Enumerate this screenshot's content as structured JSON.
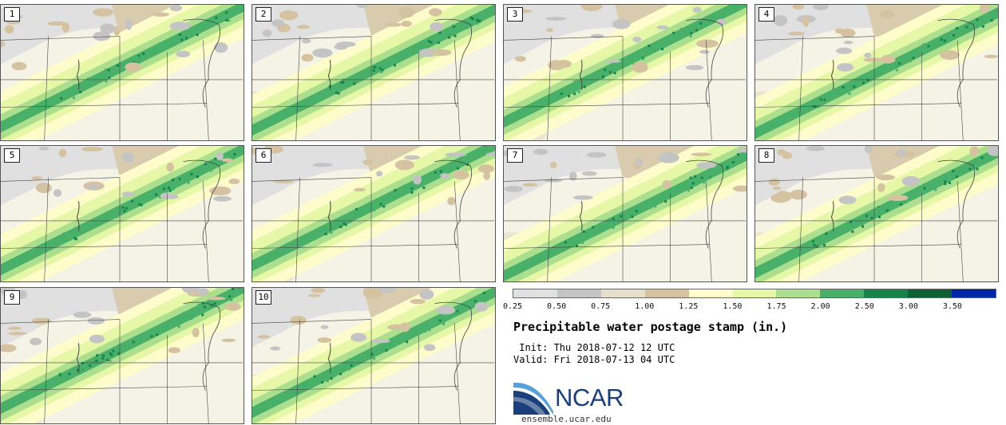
{
  "panels": [
    {
      "label": "1"
    },
    {
      "label": "2"
    },
    {
      "label": "3"
    },
    {
      "label": "4"
    },
    {
      "label": "5"
    },
    {
      "label": "6"
    },
    {
      "label": "7"
    },
    {
      "label": "8"
    },
    {
      "label": "9"
    },
    {
      "label": "10"
    }
  ],
  "colorbar": {
    "bin_colors": [
      "#e0e0e0",
      "#c4c4c4",
      "#e6dfcc",
      "#d4c2a0",
      "#fffccc",
      "#e6f7a8",
      "#acdf8d",
      "#49b06a",
      "#15834a",
      "#0d5f35",
      "#0025a8"
    ],
    "tick_labels": [
      "0.25",
      "0.50",
      "0.75",
      "1.00",
      "1.25",
      "1.50",
      "1.75",
      "2.00",
      "2.50",
      "3.00",
      "3.50"
    ]
  },
  "title": "Precipitable water postage stamp (in.)",
  "init": " Init: Thu 2018-07-12 12 UTC",
  "valid": "Valid: Fri 2018-07-13 04 UTC",
  "logo": {
    "name": "NCAR",
    "url": "ensemble.ucar.edu",
    "colors": {
      "arc_dark": "#1b3f7a",
      "arc_light": "#5aa0d8"
    }
  }
}
